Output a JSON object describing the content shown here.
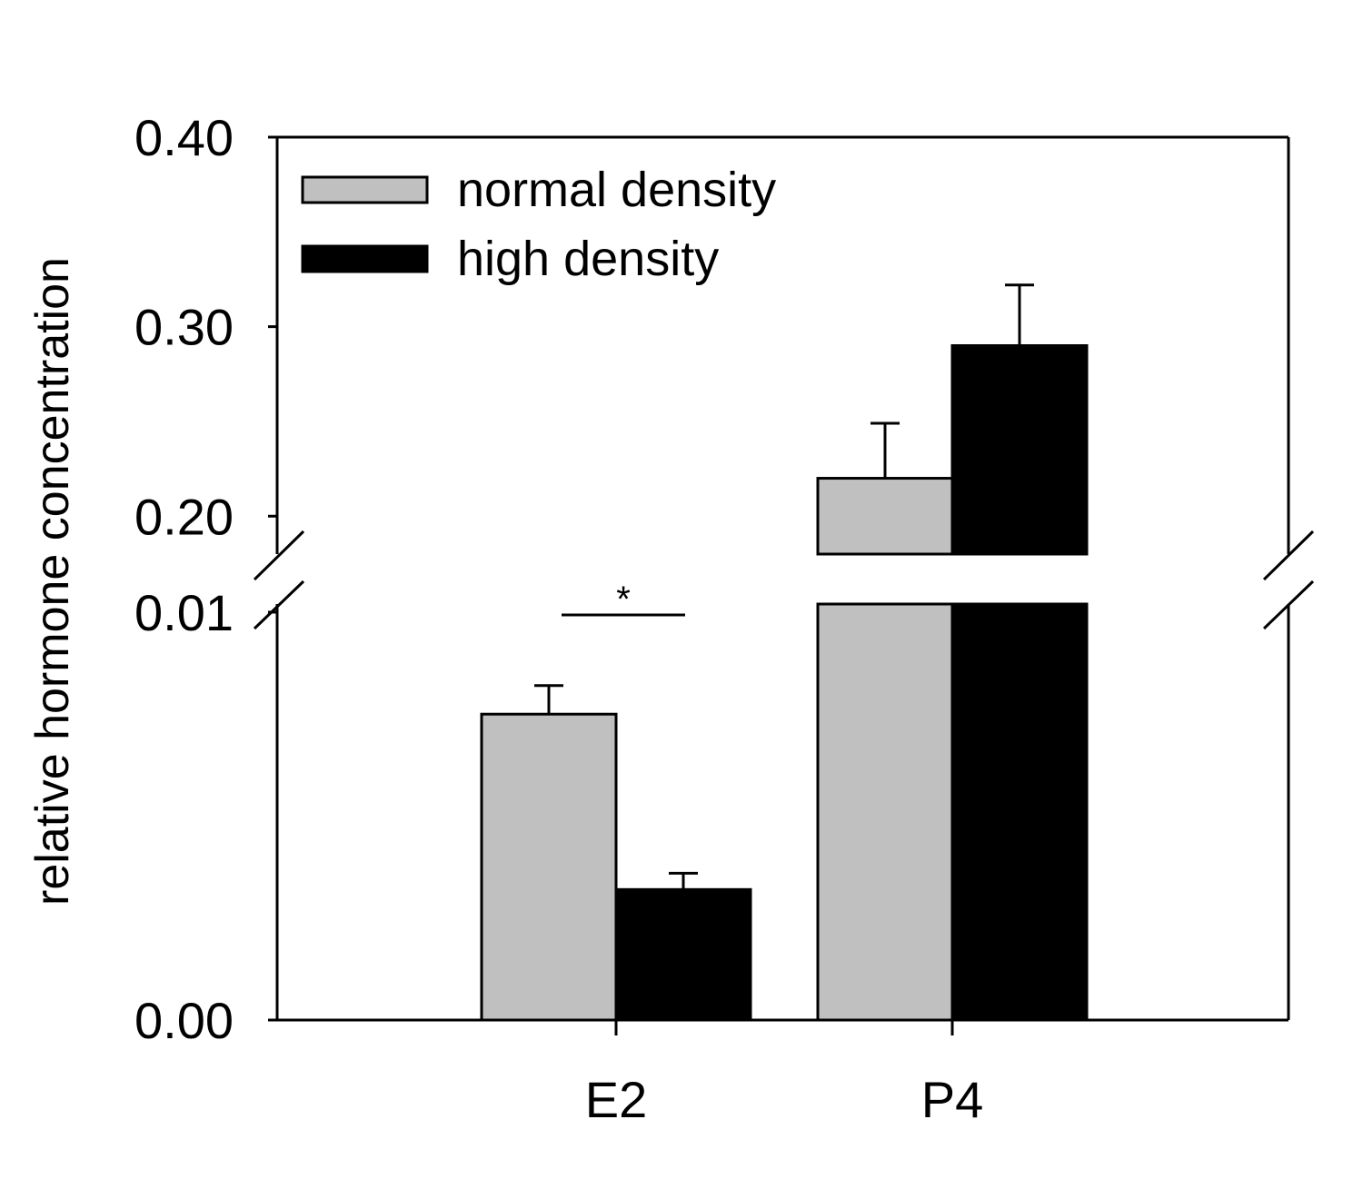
{
  "chart_data": {
    "type": "bar",
    "title": "",
    "xlabel": "",
    "ylabel": "relative hormone concentration",
    "categories": [
      "E2",
      "P4"
    ],
    "series": [
      {
        "name": "normal density",
        "color": "#c0c0c0",
        "values": [
          0.0075,
          0.22
        ],
        "errors": [
          0.0007,
          0.029
        ]
      },
      {
        "name": "high density",
        "color": "#000000",
        "values": [
          0.0032,
          0.29
        ],
        "errors": [
          0.0004,
          0.032
        ]
      }
    ],
    "axis_break": {
      "lower_range": [
        0.0,
        0.0102
      ],
      "upper_range": [
        0.18,
        0.4
      ],
      "lower_ticks": [
        {
          "value": 0.0,
          "label": "0.00"
        },
        {
          "value": 0.01,
          "label": "0.01"
        }
      ],
      "upper_ticks": [
        {
          "value": 0.2,
          "label": "0.20"
        },
        {
          "value": 0.3,
          "label": "0.30"
        },
        {
          "value": 0.4,
          "label": "0.40"
        }
      ]
    },
    "annotations": [
      {
        "text": "*",
        "category": "E2",
        "value": 0.01,
        "type": "significance"
      }
    ],
    "legend_position": "top-left",
    "grid": false
  }
}
